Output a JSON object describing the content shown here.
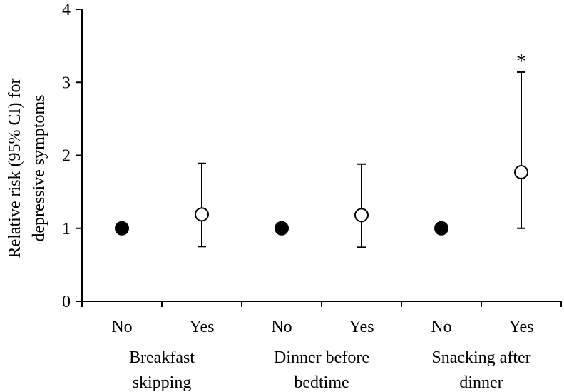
{
  "chart_data": {
    "type": "scatter",
    "title": "",
    "ylabel": "Relative risk (95% CI) for depressive symptoms",
    "ylabel_lines": [
      "Relative risk (95% CI) for",
      "depressive symptoms"
    ],
    "ylim": [
      0,
      4
    ],
    "yticks": [
      "0",
      "1",
      "2",
      "3",
      "4"
    ],
    "grid": false,
    "categories": [
      "No",
      "Yes",
      "No",
      "Yes",
      "No",
      "Yes"
    ],
    "groups": [
      {
        "label_lines": [
          "Breakfast",
          "skipping"
        ]
      },
      {
        "label_lines": [
          "Dinner before",
          "bedtime"
        ]
      },
      {
        "label_lines": [
          "Snacking after",
          "dinner"
        ]
      }
    ],
    "points": [
      {
        "category": "No",
        "value": 1.0,
        "ci": null,
        "marker": "filled",
        "annotation": ""
      },
      {
        "category": "Yes",
        "value": 1.19,
        "ci": [
          0.75,
          1.89
        ],
        "marker": "open",
        "annotation": ""
      },
      {
        "category": "No",
        "value": 1.0,
        "ci": null,
        "marker": "filled",
        "annotation": ""
      },
      {
        "category": "Yes",
        "value": 1.18,
        "ci": [
          0.74,
          1.88
        ],
        "marker": "open",
        "annotation": ""
      },
      {
        "category": "No",
        "value": 1.0,
        "ci": null,
        "marker": "filled",
        "annotation": ""
      },
      {
        "category": "Yes",
        "value": 1.77,
        "ci": [
          1.0,
          3.14
        ],
        "marker": "open",
        "annotation": "*"
      }
    ]
  }
}
